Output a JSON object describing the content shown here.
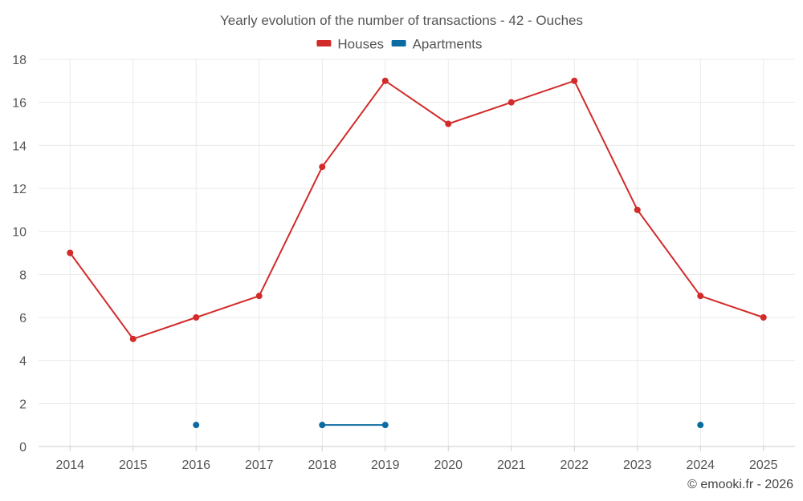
{
  "chart_data": {
    "type": "line",
    "title": "Yearly evolution of the number of transactions - 42 - Ouches",
    "categories": [
      "2014",
      "2015",
      "2016",
      "2017",
      "2018",
      "2019",
      "2020",
      "2021",
      "2022",
      "2023",
      "2024",
      "2025"
    ],
    "ylim": [
      0,
      18
    ],
    "yticks": [
      0,
      2,
      4,
      6,
      8,
      10,
      12,
      14,
      16,
      18
    ],
    "grid": true,
    "legend_position": "top-center",
    "series": [
      {
        "name": "Houses",
        "color": "#d32a2a",
        "values": [
          9,
          5,
          6,
          7,
          13,
          17,
          15,
          16,
          17,
          11,
          7,
          6
        ]
      },
      {
        "name": "Apartments",
        "color": "#0a6aa1",
        "values": [
          null,
          null,
          1,
          null,
          1,
          1,
          null,
          null,
          null,
          null,
          1,
          null
        ]
      }
    ]
  },
  "credit": "© emooki.fr - 2026"
}
